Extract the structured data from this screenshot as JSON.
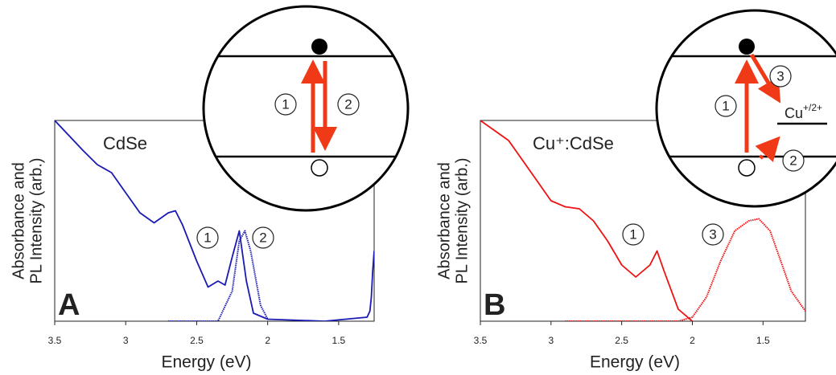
{
  "chart_data": [
    {
      "type": "line",
      "title": "CdSe",
      "panel_label": "A",
      "y_label": [
        "Absorbance and",
        "PL Intensity (arb.)"
      ],
      "x_label": "Energy (eV)",
      "xlim": [
        3.5,
        1.25
      ],
      "ylim": [
        0,
        1
      ],
      "xticks": [
        3.5,
        3.0,
        2.5,
        2.0,
        1.5
      ],
      "series": [
        {
          "color": "#1a1ab4",
          "dash": "solid",
          "x": [
            3.5,
            3.3,
            3.2,
            3.1,
            3.0,
            2.9,
            2.8,
            2.7,
            2.65,
            2.6,
            2.5,
            2.42,
            2.35,
            2.3,
            2.25,
            2.2,
            2.15,
            2.1,
            2.0,
            1.6,
            1.3,
            1.28,
            1.27,
            1.26,
            1.25
          ],
          "values": [
            1.0,
            0.85,
            0.78,
            0.74,
            0.64,
            0.54,
            0.49,
            0.54,
            0.55,
            0.48,
            0.3,
            0.17,
            0.2,
            0.18,
            0.32,
            0.45,
            0.2,
            0.04,
            0.01,
            0.0,
            0.02,
            0.05,
            0.12,
            0.25,
            0.35
          ]
        },
        {
          "color": "#1a1ab4",
          "dash": "dotted",
          "x": [
            2.7,
            2.35,
            2.25,
            2.2,
            2.16,
            2.12,
            2.05,
            2.0
          ],
          "values": [
            0.0,
            0.0,
            0.15,
            0.4,
            0.45,
            0.35,
            0.08,
            0.01
          ]
        }
      ],
      "annotations": [
        "1",
        "2"
      ],
      "inset": {
        "labels": [
          "1",
          "2"
        ]
      }
    },
    {
      "type": "line",
      "title": "Cu⁺:CdSe",
      "panel_label": "B",
      "y_label": [
        "Absorbance and",
        "PL Intensity (arb.)"
      ],
      "x_label": "Energy (eV)",
      "xlim": [
        3.5,
        1.2
      ],
      "ylim": [
        0,
        1
      ],
      "xticks": [
        3.5,
        3.0,
        2.5,
        2.0,
        1.5
      ],
      "series": [
        {
          "color": "#ee1111",
          "dash": "solid",
          "x": [
            3.5,
            3.3,
            3.1,
            3.0,
            2.9,
            2.8,
            2.7,
            2.6,
            2.5,
            2.4,
            2.3,
            2.25,
            2.2,
            2.1,
            2.0
          ],
          "values": [
            1.0,
            0.9,
            0.7,
            0.6,
            0.57,
            0.56,
            0.5,
            0.4,
            0.28,
            0.22,
            0.28,
            0.35,
            0.25,
            0.06,
            0.0
          ]
        },
        {
          "color": "#ee1111",
          "dash": "dotted",
          "x": [
            2.9,
            2.1,
            2.0,
            1.9,
            1.8,
            1.7,
            1.6,
            1.53,
            1.45,
            1.35,
            1.3,
            1.25,
            1.2
          ],
          "values": [
            0.0,
            0.0,
            0.02,
            0.12,
            0.3,
            0.45,
            0.5,
            0.51,
            0.45,
            0.25,
            0.15,
            0.1,
            0.05
          ]
        }
      ],
      "annotations": [
        "1",
        "3"
      ],
      "inset": {
        "labels": [
          "1",
          "3",
          "2"
        ],
        "level_label": "Cu",
        "level_label_sup": "+/2+"
      }
    }
  ]
}
